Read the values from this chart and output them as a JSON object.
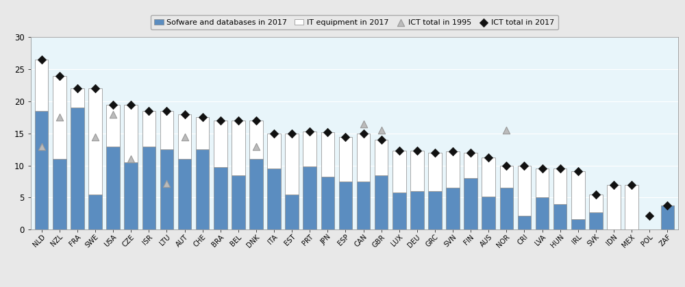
{
  "countries": [
    "NLD",
    "NZL",
    "FRA",
    "SWE",
    "USA",
    "CZE",
    "ISR",
    "LTU",
    "AUT",
    "CHE",
    "BRA",
    "BEL",
    "DNK",
    "ITA",
    "EST",
    "PRT",
    "JPN",
    "ESP",
    "CAN",
    "GBR",
    "LUX",
    "DEU",
    "GRC",
    "SVN",
    "FIN",
    "AUS",
    "NOR",
    "CRI",
    "LVA",
    "HUN",
    "IRL",
    "SVK",
    "IDN",
    "MEX",
    "POL",
    "ZAF"
  ],
  "software": [
    18.5,
    11.0,
    19.0,
    5.5,
    13.0,
    10.5,
    13.0,
    12.5,
    11.0,
    12.5,
    9.7,
    8.5,
    11.0,
    9.5,
    5.5,
    9.8,
    8.2,
    7.5,
    7.5,
    8.5,
    5.8,
    6.0,
    6.0,
    6.5,
    8.0,
    5.2,
    6.5,
    2.2,
    5.0,
    4.0,
    1.6,
    2.7,
    0,
    0,
    0,
    3.8
  ],
  "it_equipment": [
    8.0,
    13.0,
    3.0,
    16.5,
    6.5,
    9.0,
    5.5,
    6.0,
    7.0,
    5.0,
    7.3,
    8.5,
    6.0,
    5.5,
    9.5,
    5.5,
    7.0,
    7.0,
    7.5,
    5.5,
    6.5,
    6.3,
    6.0,
    5.7,
    4.0,
    6.0,
    3.5,
    7.8,
    4.5,
    5.5,
    7.5,
    2.8,
    7.0,
    7.0,
    0,
    0
  ],
  "ict_1995": [
    13.0,
    17.5,
    null,
    14.5,
    18.0,
    11.0,
    null,
    7.2,
    14.5,
    null,
    null,
    null,
    13.0,
    null,
    null,
    null,
    null,
    null,
    16.5,
    15.5,
    null,
    null,
    null,
    null,
    null,
    null,
    15.5,
    null,
    null,
    null,
    null,
    null,
    null,
    null,
    null,
    null
  ],
  "ict_2017": [
    26.5,
    24.0,
    22.0,
    22.0,
    19.5,
    19.5,
    18.5,
    18.5,
    18.0,
    17.5,
    17.0,
    17.0,
    17.0,
    15.0,
    15.0,
    15.3,
    15.2,
    14.5,
    15.0,
    14.0,
    12.3,
    12.3,
    12.0,
    12.2,
    12.0,
    11.2,
    10.0,
    10.0,
    9.5,
    9.5,
    9.1,
    5.5,
    7.0,
    7.0,
    2.2,
    3.8
  ],
  "bar_color_software": "#5b8dc0",
  "bar_color_it": "#ffffff",
  "bar_edgecolor": "#888888",
  "triangle_color": "#bbbbbb",
  "triangle_edgecolor": "#999999",
  "diamond_color": "#111111",
  "plot_bg_color": "#e8f5fa",
  "fig_bg_color": "#e8e8e8",
  "ylim": [
    0,
    30
  ],
  "yticks": [
    0,
    5,
    10,
    15,
    20,
    25,
    30
  ],
  "legend_labels": [
    "Sofware and databases in 2017",
    "IT equipment in 2017",
    "ICT total in 1995",
    "ICT total in 2017"
  ]
}
